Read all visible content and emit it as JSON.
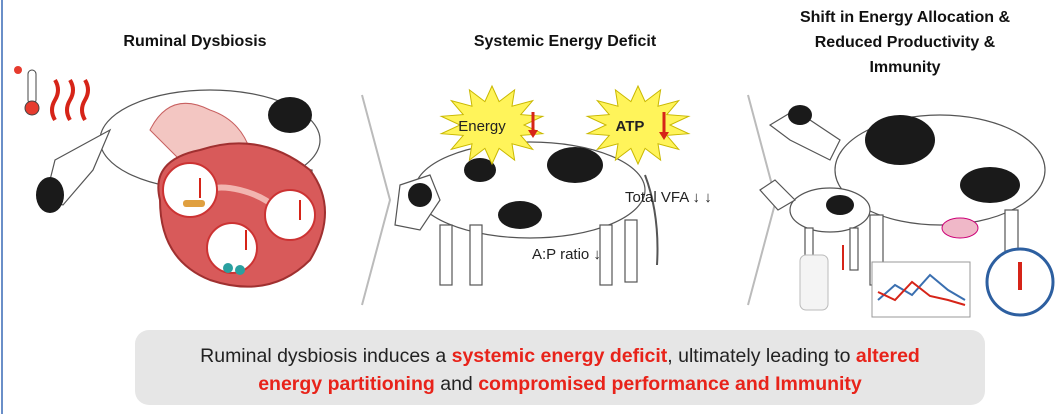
{
  "panels": [
    {
      "title_lines": [
        "Ruminal Dysbiosis"
      ]
    },
    {
      "title_lines": [
        "Systemic Energy Deficit"
      ],
      "labels": [
        "Energy",
        "ATP",
        "Total VFA ↓ ↓",
        "A:P ratio ↓"
      ]
    },
    {
      "title_lines": [
        "Shift in Energy Allocation &",
        "Reduced Productivity &",
        "Immunity"
      ]
    }
  ],
  "caption": {
    "lines": [
      [
        {
          "text": "Ruminal dysbiosis induces a ",
          "emphasis": false
        },
        {
          "text": "systemic energy deficit",
          "emphasis": true
        },
        {
          "text": ", ultimately leading to ",
          "emphasis": false
        },
        {
          "text": "altered",
          "emphasis": true
        }
      ],
      [
        {
          "text": "energy partitioning",
          "emphasis": true
        },
        {
          "text": " and ",
          "emphasis": false
        },
        {
          "text": "compromised performance and Immunity",
          "emphasis": true
        }
      ]
    ]
  }
}
